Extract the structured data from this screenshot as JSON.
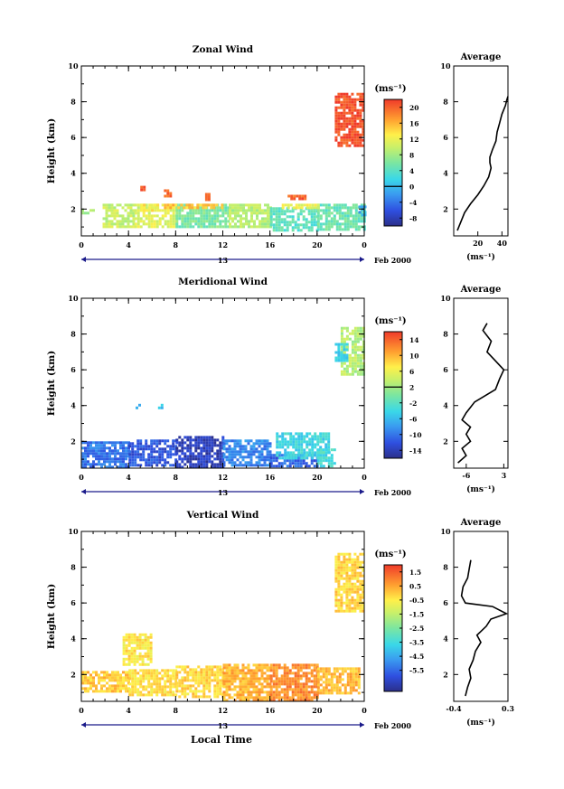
{
  "date_label": "Feb 2000",
  "x_axis_label": "Local Time",
  "chart_data": [
    {
      "type": "heatmap",
      "title": "Zonal Wind",
      "ylabel": "Height (km)",
      "xlim": [
        0,
        24
      ],
      "ylim": [
        0.5,
        10
      ],
      "x_ticks": [
        "0",
        "4",
        "8",
        "12",
        "16",
        "20",
        "0"
      ],
      "x_tick_values": [
        0,
        4,
        8,
        12,
        16,
        20,
        24
      ],
      "y_ticks": [
        2,
        4,
        6,
        8,
        10
      ],
      "date_tick": "13",
      "colorbar": {
        "unit": "(ms⁻¹)",
        "min": -10,
        "max": 22,
        "ticks": [
          20,
          16,
          12,
          8,
          4,
          0,
          -4,
          -8
        ],
        "contour": 0
      },
      "cells": [
        [
          0,
          1.0,
          1.8,
          2.0,
          8
        ],
        [
          1.8,
          4.5,
          1.0,
          2.3,
          10
        ],
        [
          4.5,
          8.0,
          1.0,
          2.3,
          11
        ],
        [
          8.0,
          12.5,
          1.0,
          2.3,
          6
        ],
        [
          12.5,
          16,
          1.0,
          2.3,
          9
        ],
        [
          16,
          20,
          0.8,
          2.1,
          4
        ],
        [
          20,
          24,
          0.8,
          2.3,
          5
        ],
        [
          5.0,
          6.5,
          1.9,
          2.3,
          13
        ],
        [
          7,
          12,
          2.0,
          2.3,
          15
        ],
        [
          17,
          20,
          2.0,
          2.3,
          12
        ],
        [
          23.5,
          24,
          1.6,
          2.2,
          -1
        ],
        [
          5.0,
          5.4,
          3.0,
          3.3,
          21
        ],
        [
          7.0,
          7.5,
          2.7,
          3.1,
          20
        ],
        [
          10.5,
          10.8,
          2.5,
          2.9,
          19
        ],
        [
          17.5,
          19,
          2.5,
          2.8,
          20
        ],
        [
          21.5,
          24,
          5.5,
          8.5,
          21
        ]
      ],
      "avg_panel": {
        "title": "Average",
        "xlim": [
          0,
          45
        ],
        "x_ticks": [
          20,
          40
        ],
        "xlabel": "(ms⁻¹)",
        "x": [
          3,
          6,
          9,
          14,
          20,
          25,
          29,
          31,
          30,
          30,
          32,
          35,
          36,
          38,
          40,
          43,
          44,
          45
        ],
        "y": [
          0.8,
          1.3,
          1.8,
          2.3,
          2.8,
          3.3,
          3.8,
          4.3,
          4.6,
          4.9,
          5.3,
          5.8,
          6.3,
          6.8,
          7.3,
          7.8,
          8.1,
          8.3
        ]
      }
    },
    {
      "type": "heatmap",
      "title": "Meridional Wind",
      "ylabel": "Height (km)",
      "xlim": [
        0,
        24
      ],
      "ylim": [
        0.5,
        10
      ],
      "x_ticks": [
        "0",
        "4",
        "8",
        "12",
        "16",
        "20",
        "0"
      ],
      "x_tick_values": [
        0,
        4,
        8,
        12,
        16,
        20,
        24
      ],
      "y_ticks": [
        2,
        4,
        6,
        8,
        10
      ],
      "date_tick": "13",
      "colorbar": {
        "unit": "(ms⁻¹)",
        "min": -16,
        "max": 16,
        "ticks": [
          14,
          10,
          6,
          2,
          -2,
          -6,
          -10,
          -14
        ],
        "contour": 2
      },
      "cells": [
        [
          0,
          4,
          0.6,
          2.0,
          -10
        ],
        [
          4,
          8,
          0.6,
          2.1,
          -12
        ],
        [
          8,
          12,
          0.6,
          2.3,
          -14
        ],
        [
          12,
          16,
          0.6,
          2.1,
          -9
        ],
        [
          16,
          20,
          0.6,
          1.3,
          -11
        ],
        [
          16.5,
          21,
          1.0,
          2.5,
          -4
        ],
        [
          20,
          21.5,
          0.6,
          1.6,
          -3
        ],
        [
          4.6,
          5.0,
          3.8,
          4.1,
          -7
        ],
        [
          6.5,
          6.8,
          3.8,
          4.1,
          -6
        ],
        [
          22,
          24,
          5.8,
          8.4,
          3
        ],
        [
          21.5,
          22.5,
          6.5,
          7.5,
          -4
        ]
      ],
      "avg_panel": {
        "title": "Average",
        "xlim": [
          -9,
          4
        ],
        "x_ticks": [
          -6,
          3
        ],
        "xlabel": "(ms⁻¹)",
        "x": [
          -8,
          -6,
          -7,
          -5,
          -6,
          -5,
          -7,
          -6,
          -5,
          -4,
          1,
          2,
          3,
          1,
          -1,
          0,
          -2,
          -1
        ],
        "y": [
          0.8,
          1.2,
          1.6,
          2.0,
          2.4,
          2.8,
          3.2,
          3.6,
          3.9,
          4.2,
          4.9,
          5.5,
          6.0,
          6.5,
          7.0,
          7.6,
          8.2,
          8.6
        ]
      }
    },
    {
      "type": "heatmap",
      "title": "Vertical Wind",
      "ylabel": "Height (km)",
      "xlim": [
        0,
        24
      ],
      "ylim": [
        0.5,
        10
      ],
      "x_ticks": [
        "0",
        "4",
        "8",
        "12",
        "16",
        "20",
        "0"
      ],
      "x_tick_values": [
        0,
        4,
        8,
        12,
        16,
        20,
        24
      ],
      "y_ticks": [
        2,
        4,
        6,
        8,
        10
      ],
      "date_tick": "13",
      "colorbar": {
        "unit": "(ms⁻¹)",
        "min": -7,
        "max": 2,
        "ticks": [
          1.5,
          0.5,
          -0.5,
          -1.5,
          -2.5,
          -3.5,
          -4.5,
          -5.5
        ],
        "contour": null
      },
      "cells": [
        [
          0,
          4,
          1.0,
          2.2,
          0.0
        ],
        [
          4,
          8,
          0.8,
          2.3,
          -0.3
        ],
        [
          8,
          12,
          0.8,
          2.5,
          -0.2
        ],
        [
          12,
          16,
          0.6,
          2.6,
          0.3
        ],
        [
          16,
          20,
          0.6,
          2.6,
          0.8
        ],
        [
          20,
          23.5,
          1.0,
          2.4,
          0.2
        ],
        [
          3.5,
          6,
          2.5,
          4.3,
          -0.4
        ],
        [
          21.5,
          24,
          5.5,
          8.8,
          -0.2
        ]
      ],
      "avg_panel": {
        "title": "Average",
        "xlim": [
          -0.4,
          0.3
        ],
        "x_ticks": [
          -0.4,
          0.3
        ],
        "xlabel": "(ms⁻¹)",
        "x": [
          -0.25,
          -0.22,
          -0.18,
          -0.2,
          -0.15,
          -0.12,
          -0.05,
          -0.1,
          0.02,
          0.08,
          0.28,
          0.1,
          -0.25,
          -0.3,
          -0.28,
          -0.22,
          -0.2,
          -0.18
        ],
        "y": [
          0.8,
          1.3,
          1.8,
          2.3,
          2.8,
          3.3,
          3.8,
          4.2,
          4.7,
          5.1,
          5.4,
          5.8,
          6.0,
          6.4,
          6.9,
          7.4,
          7.9,
          8.4
        ]
      }
    }
  ]
}
